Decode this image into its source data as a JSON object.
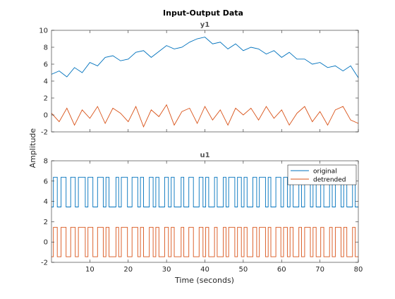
{
  "figure": {
    "title": "Input-Output Data",
    "xlabel": "Time (seconds)",
    "ylabel": "Amplitude"
  },
  "colors": {
    "original": "#0072BD",
    "detrended": "#D95319",
    "axis_text": "#262626",
    "subplot_title": "#555555"
  },
  "chart_data": [
    {
      "type": "line",
      "title": "y1",
      "xlim": [
        0,
        80
      ],
      "ylim": [
        -2,
        10
      ],
      "xticks": [
        10,
        20,
        30,
        40,
        50,
        60,
        70,
        80
      ],
      "yticks": [
        -2,
        0,
        2,
        4,
        6,
        8,
        10
      ],
      "series": [
        {
          "name": "original",
          "x": [
            0,
            2,
            4,
            6,
            8,
            10,
            12,
            14,
            16,
            18,
            20,
            22,
            24,
            26,
            28,
            30,
            32,
            34,
            36,
            38,
            40,
            42,
            44,
            46,
            48,
            50,
            52,
            54,
            56,
            58,
            60,
            62,
            64,
            66,
            68,
            70,
            72,
            74,
            76,
            78,
            80
          ],
          "values": [
            4.8,
            5.2,
            4.5,
            5.6,
            5.0,
            6.2,
            5.8,
            6.8,
            7.0,
            6.4,
            6.6,
            7.4,
            7.6,
            6.8,
            7.5,
            8.2,
            7.8,
            8.0,
            8.6,
            9.0,
            9.2,
            8.4,
            8.6,
            7.8,
            8.4,
            7.6,
            8.0,
            7.8,
            7.2,
            7.6,
            6.8,
            7.4,
            6.6,
            6.6,
            6.0,
            6.2,
            5.6,
            5.8,
            5.2,
            5.8,
            4.4
          ]
        },
        {
          "name": "detrended",
          "x": [
            0,
            2,
            4,
            6,
            8,
            10,
            12,
            14,
            16,
            18,
            20,
            22,
            24,
            26,
            28,
            30,
            32,
            34,
            36,
            38,
            40,
            42,
            44,
            46,
            48,
            50,
            52,
            54,
            56,
            58,
            60,
            62,
            64,
            66,
            68,
            70,
            72,
            74,
            76,
            78,
            80
          ],
          "values": [
            0.2,
            -0.8,
            0.8,
            -1.2,
            0.6,
            -0.4,
            1.0,
            -1.0,
            0.8,
            0.2,
            -0.8,
            1.0,
            -1.4,
            0.6,
            -0.2,
            1.2,
            -1.2,
            0.4,
            0.8,
            -1.0,
            1.0,
            -0.6,
            0.6,
            -1.2,
            0.8,
            0.0,
            0.8,
            -0.6,
            1.0,
            -0.4,
            0.6,
            -1.2,
            0.2,
            1.0,
            -0.8,
            0.4,
            -1.2,
            0.6,
            1.0,
            -0.6,
            -1.0
          ]
        }
      ]
    },
    {
      "type": "line",
      "title": "u1",
      "xlim": [
        0,
        80
      ],
      "ylim": [
        -2,
        8
      ],
      "xticks": [
        10,
        20,
        30,
        40,
        50,
        60,
        70,
        80
      ],
      "yticks": [
        -2,
        0,
        2,
        4,
        6,
        8
      ],
      "legend": {
        "placement": "top-right",
        "entries": [
          "original",
          "detrended"
        ]
      },
      "series": [
        {
          "name": "original",
          "levels": [
            3.45,
            6.38
          ],
          "transitions": [
            0.5,
            1.5,
            2.5,
            3.8,
            5.0,
            6.2,
            7.0,
            8.8,
            9.5,
            10.8,
            12.0,
            13.5,
            14.2,
            15.0,
            16.8,
            17.5,
            18.2,
            19.8,
            21.0,
            22.5,
            23.2,
            24.0,
            25.5,
            26.5,
            27.2,
            28.0,
            29.5,
            30.5,
            31.2,
            32.0,
            33.8,
            34.5,
            35.8,
            37.0,
            38.5,
            39.5,
            40.2,
            41.0,
            42.5,
            43.2,
            44.8,
            45.5,
            46.2,
            47.8,
            48.5,
            49.5,
            50.2,
            51.0,
            52.5,
            53.5,
            54.2,
            55.8,
            56.5,
            57.2,
            58.5,
            59.8,
            60.5,
            61.5,
            62.2,
            63.0,
            64.5,
            65.2,
            66.0,
            67.5,
            68.2,
            69.0,
            70.2,
            71.0,
            72.5,
            73.2,
            74.0,
            75.5,
            76.2,
            77.0,
            78.5,
            79.2
          ]
        },
        {
          "name": "detrended",
          "levels": [
            -1.45,
            1.45
          ],
          "transitions": [
            0.5,
            1.5,
            2.5,
            3.8,
            5.0,
            6.2,
            7.0,
            8.8,
            9.5,
            10.8,
            12.0,
            13.5,
            14.2,
            15.0,
            16.8,
            17.5,
            18.2,
            19.8,
            21.0,
            22.5,
            23.2,
            24.0,
            25.5,
            26.5,
            27.2,
            28.0,
            29.5,
            30.5,
            31.2,
            32.0,
            33.8,
            34.5,
            35.8,
            37.0,
            38.5,
            39.5,
            40.2,
            41.0,
            42.5,
            43.2,
            44.8,
            45.5,
            46.2,
            47.8,
            48.5,
            49.5,
            50.2,
            51.0,
            52.5,
            53.5,
            54.2,
            55.8,
            56.5,
            57.2,
            58.5,
            59.8,
            60.5,
            61.5,
            62.2,
            63.0,
            64.5,
            65.2,
            66.0,
            67.5,
            68.2,
            69.0,
            70.2,
            71.0,
            72.5,
            73.2,
            74.0,
            75.5,
            76.2,
            77.0,
            78.5,
            79.2
          ]
        }
      ]
    }
  ]
}
